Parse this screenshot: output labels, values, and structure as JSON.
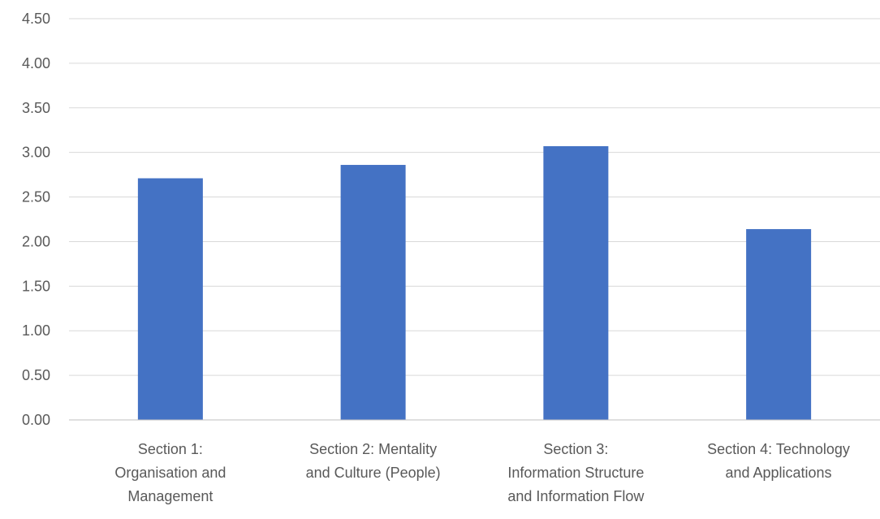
{
  "chart_data": {
    "type": "bar",
    "title": "",
    "xlabel": "",
    "ylabel": "",
    "categories": [
      [
        "Section 1:",
        "Organisation and",
        "Management"
      ],
      [
        "Section 2: Mentality",
        "and Culture (People)"
      ],
      [
        "Section 3:",
        "Information Structure",
        "and Information Flow"
      ],
      [
        "Section 4: Technology",
        "and Applications"
      ]
    ],
    "values": [
      2.71,
      2.86,
      3.07,
      2.14
    ],
    "ylim": [
      0,
      4.5
    ],
    "yticks": [
      "0.00",
      "0.50",
      "1.00",
      "1.50",
      "2.00",
      "2.50",
      "3.00",
      "3.50",
      "4.00",
      "4.50"
    ],
    "bar_color": "#4472c4",
    "grid": true,
    "legend": "none"
  }
}
